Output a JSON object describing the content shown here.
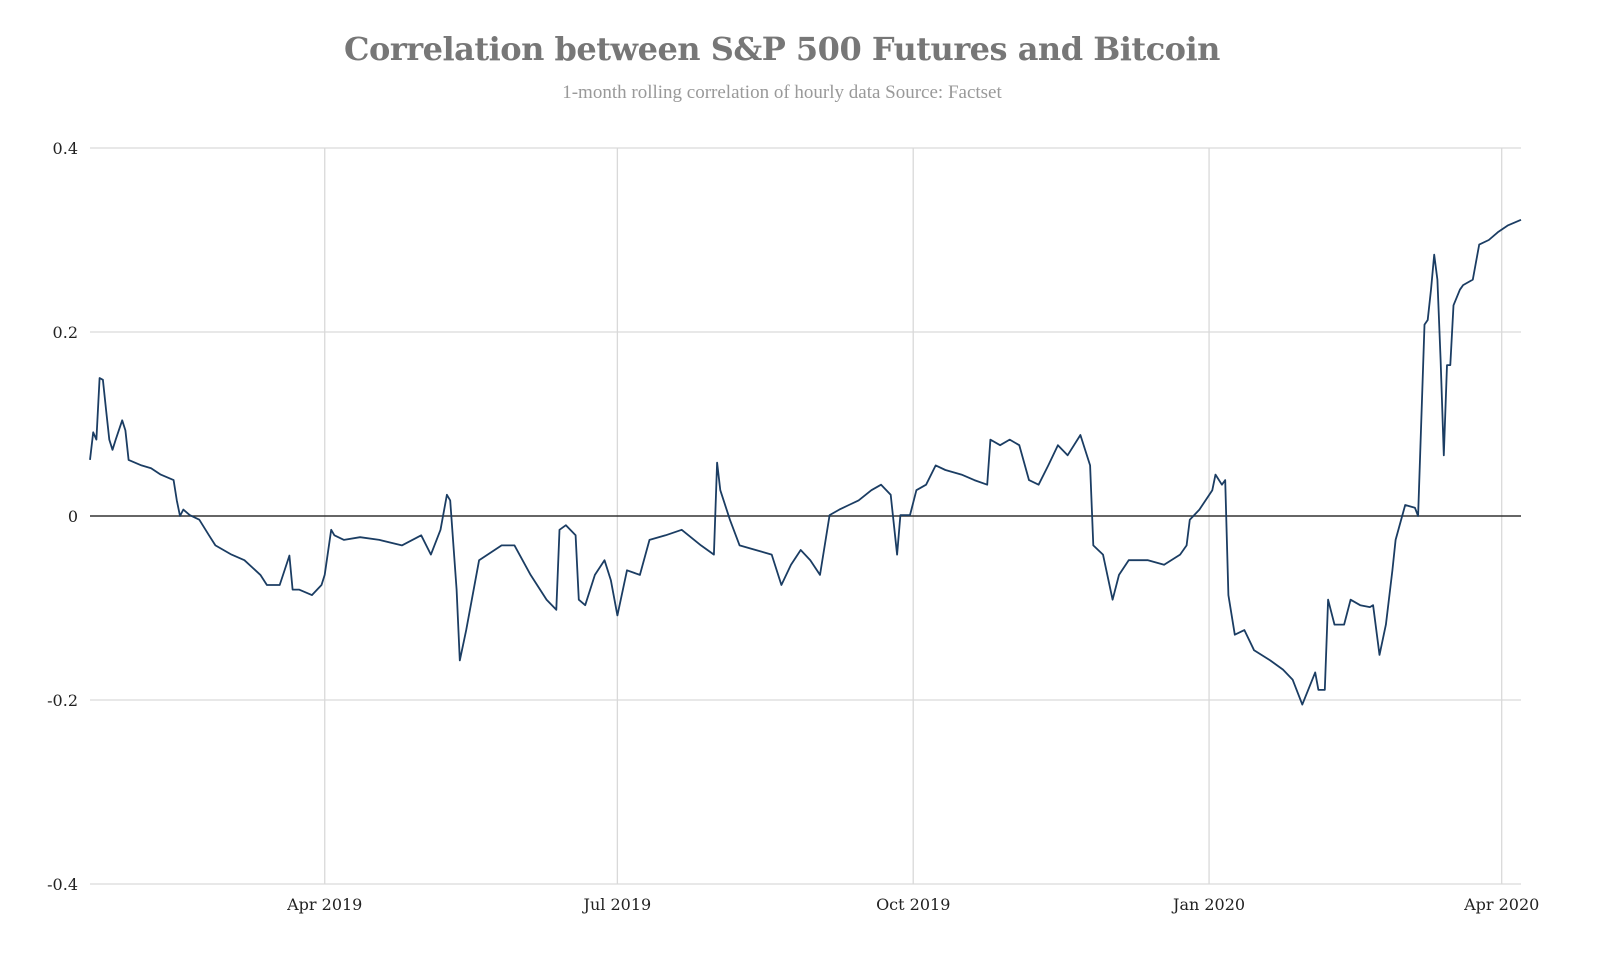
{
  "chart_data": {
    "type": "line",
    "title": "Correlation between S&P 500 Futures and Bitcoin",
    "subtitle": "1-month rolling correlation of hourly data Source: Factset",
    "xlabel": "",
    "ylabel": "",
    "xlim": [
      "2019-01-18",
      "2020-04-07"
    ],
    "ylim": [
      -0.4,
      0.4
    ],
    "grid": true,
    "legend": "none",
    "line_color": "#1b3d63",
    "zero_line_color": "#333333",
    "grid_color": "#d9d9d9",
    "y_ticks": [
      {
        "value": 0.4,
        "label": "0.4"
      },
      {
        "value": 0.2,
        "label": "0.2"
      },
      {
        "value": 0,
        "label": "0"
      },
      {
        "value": -0.2,
        "label": "-0.2"
      },
      {
        "value": -0.4,
        "label": "-0.4"
      }
    ],
    "x_ticks": [
      {
        "value": "2019-04-01",
        "label": "Apr 2019"
      },
      {
        "value": "2019-07-01",
        "label": "Jul 2019"
      },
      {
        "value": "2019-10-01",
        "label": "Oct 2019"
      },
      {
        "value": "2020-01-01",
        "label": "Jan 2020"
      },
      {
        "value": "2020-04-01",
        "label": "Apr 2020"
      }
    ],
    "series": [
      {
        "x": [
          "2019-01-18",
          "2019-01-19",
          "2019-01-20",
          "2019-01-21",
          "2019-01-22",
          "2019-01-23",
          "2019-01-24",
          "2019-01-25",
          "2019-01-26",
          "2019-01-28",
          "2019-01-29",
          "2019-01-30",
          "2019-02-03",
          "2019-02-06",
          "2019-02-09",
          "2019-02-13",
          "2019-02-14",
          "2019-02-15",
          "2019-02-16",
          "2019-02-18",
          "2019-02-21",
          "2019-02-24",
          "2019-02-26",
          "2019-03-03",
          "2019-03-07",
          "2019-03-12",
          "2019-03-14",
          "2019-03-18",
          "2019-03-21",
          "2019-03-22",
          "2019-03-24",
          "2019-03-28",
          "2019-03-31",
          "2019-04-01",
          "2019-04-03",
          "2019-04-04",
          "2019-04-07",
          "2019-04-12",
          "2019-04-18",
          "2019-04-25",
          "2019-05-01",
          "2019-05-04",
          "2019-05-07",
          "2019-05-09",
          "2019-05-10",
          "2019-05-12",
          "2019-05-13",
          "2019-05-15",
          "2019-05-19",
          "2019-05-26",
          "2019-05-30",
          "2019-06-04",
          "2019-06-09",
          "2019-06-12",
          "2019-06-13",
          "2019-06-15",
          "2019-06-18",
          "2019-06-19",
          "2019-06-21",
          "2019-06-24",
          "2019-06-27",
          "2019-06-29",
          "2019-07-01",
          "2019-07-04",
          "2019-07-08",
          "2019-07-11",
          "2019-07-16",
          "2019-07-21",
          "2019-07-27",
          "2019-07-31",
          "2019-08-01",
          "2019-08-02",
          "2019-08-05",
          "2019-08-08",
          "2019-08-13",
          "2019-08-18",
          "2019-08-21",
          "2019-08-24",
          "2019-08-27",
          "2019-08-30",
          "2019-09-02",
          "2019-09-05",
          "2019-09-08",
          "2019-09-11",
          "2019-09-14",
          "2019-09-18",
          "2019-09-21",
          "2019-09-24",
          "2019-09-26",
          "2019-09-27",
          "2019-09-30",
          "2019-10-02",
          "2019-10-05",
          "2019-10-08",
          "2019-10-11",
          "2019-10-16",
          "2019-10-20",
          "2019-10-24",
          "2019-10-25",
          "2019-10-28",
          "2019-10-31",
          "2019-11-03",
          "2019-11-06",
          "2019-11-09",
          "2019-11-12",
          "2019-11-15",
          "2019-11-18",
          "2019-11-22",
          "2019-11-25",
          "2019-11-26",
          "2019-11-29",
          "2019-12-02",
          "2019-12-04",
          "2019-12-07",
          "2019-12-13",
          "2019-12-18",
          "2019-12-23",
          "2019-12-25",
          "2019-12-26",
          "2019-12-29",
          "2020-01-02",
          "2020-01-03",
          "2020-01-05",
          "2020-01-06",
          "2020-01-07",
          "2020-01-09",
          "2020-01-12",
          "2020-01-15",
          "2020-01-20",
          "2020-01-24",
          "2020-01-27",
          "2020-01-30",
          "2020-02-03",
          "2020-02-04",
          "2020-02-06",
          "2020-02-07",
          "2020-02-09",
          "2020-02-12",
          "2020-02-14",
          "2020-02-17",
          "2020-02-20",
          "2020-02-21",
          "2020-02-23",
          "2020-02-25",
          "2020-02-27",
          "2020-02-28",
          "2020-03-02",
          "2020-03-05",
          "2020-03-06",
          "2020-03-08",
          "2020-03-09",
          "2020-03-10",
          "2020-03-11",
          "2020-03-12",
          "2020-03-13",
          "2020-03-14",
          "2020-03-15",
          "2020-03-16",
          "2020-03-17",
          "2020-03-19",
          "2020-03-20",
          "2020-03-23",
          "2020-03-25",
          "2020-03-28",
          "2020-03-31",
          "2020-04-03",
          "2020-04-07"
        ],
        "y": [
          0.061,
          0.091,
          0.083,
          0.15,
          0.148,
          0.115,
          0.083,
          0.072,
          0.083,
          0.104,
          0.093,
          0.061,
          0.055,
          0.052,
          0.045,
          0.039,
          0.017,
          0.0,
          0.007,
          0.001,
          -0.004,
          -0.021,
          -0.032,
          -0.042,
          -0.048,
          -0.064,
          -0.075,
          -0.075,
          -0.043,
          -0.08,
          -0.08,
          -0.086,
          -0.075,
          -0.064,
          -0.015,
          -0.021,
          -0.026,
          -0.023,
          -0.026,
          -0.032,
          -0.021,
          -0.042,
          -0.015,
          0.023,
          0.017,
          -0.08,
          -0.157,
          -0.124,
          -0.048,
          -0.032,
          -0.032,
          -0.064,
          -0.091,
          -0.102,
          -0.015,
          -0.01,
          -0.021,
          -0.091,
          -0.097,
          -0.064,
          -0.048,
          -0.07,
          -0.108,
          -0.059,
          -0.064,
          -0.026,
          -0.021,
          -0.015,
          -0.032,
          -0.042,
          0.058,
          0.028,
          -0.004,
          -0.032,
          -0.037,
          -0.042,
          -0.075,
          -0.053,
          -0.037,
          -0.048,
          -0.064,
          0.001,
          0.007,
          0.012,
          0.017,
          0.028,
          0.034,
          0.023,
          -0.042,
          0.001,
          0.001,
          0.028,
          0.034,
          0.055,
          0.05,
          0.045,
          0.039,
          0.034,
          0.083,
          0.077,
          0.083,
          0.077,
          0.039,
          0.034,
          0.055,
          0.077,
          0.066,
          0.088,
          0.055,
          -0.032,
          -0.042,
          -0.091,
          -0.064,
          -0.048,
          -0.048,
          -0.053,
          -0.042,
          -0.032,
          -0.004,
          0.007,
          0.028,
          0.045,
          0.034,
          0.039,
          -0.086,
          -0.129,
          -0.124,
          -0.146,
          -0.157,
          -0.167,
          -0.178,
          -0.205,
          -0.17,
          -0.189,
          -0.189,
          -0.091,
          -0.118,
          -0.118,
          -0.091,
          -0.097,
          -0.099,
          -0.097,
          -0.151,
          -0.118,
          -0.059,
          -0.026,
          0.012,
          0.009,
          0.0,
          0.208,
          0.213,
          0.246,
          0.284,
          0.257,
          0.17,
          0.066,
          0.164,
          0.164,
          0.229,
          0.246,
          0.251,
          0.257,
          0.295,
          0.3,
          0.309,
          0.316,
          0.322
        ]
      }
    ]
  }
}
